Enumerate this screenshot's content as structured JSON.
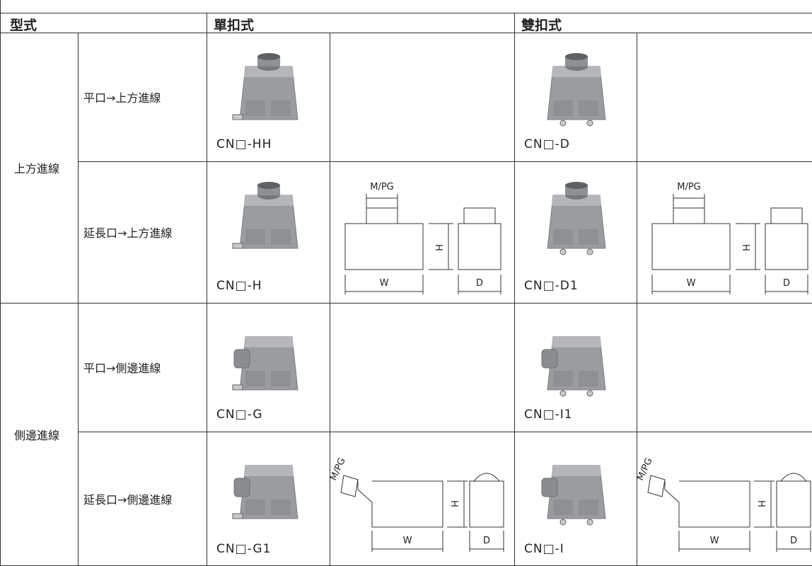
{
  "header": [
    "型式",
    "單扣式",
    "雙扣式"
  ],
  "groups": [
    {
      "label": "上方進線",
      "rows": [
        {
          "label": "平口→上方進線",
          "single": "CN□-HH",
          "double": "CN□-D"
        },
        {
          "label": "延長口→上方進線",
          "single": "CN□-H",
          "double": "CN□-D1",
          "single_diagram": {
            "port": "M/PG",
            "height": "H",
            "width": "W",
            "depth": "D"
          },
          "double_diagram": {
            "port": "M/PG",
            "height": "H",
            "width": "W",
            "depth": "D"
          }
        }
      ]
    },
    {
      "label": "側邊進線",
      "rows": [
        {
          "label": "平口→側邊進線",
          "single": "CN□-G",
          "double": "CN□-I1"
        },
        {
          "label": "延長口→側邊進線",
          "single": "CN□-G1",
          "double": "CN□-I",
          "single_diagram": {
            "port": "M/PG",
            "height": "H",
            "width": "W",
            "depth": "D"
          },
          "double_diagram": {
            "port": "M/PG",
            "height": "H",
            "width": "W",
            "depth": "D"
          }
        }
      ]
    }
  ]
}
